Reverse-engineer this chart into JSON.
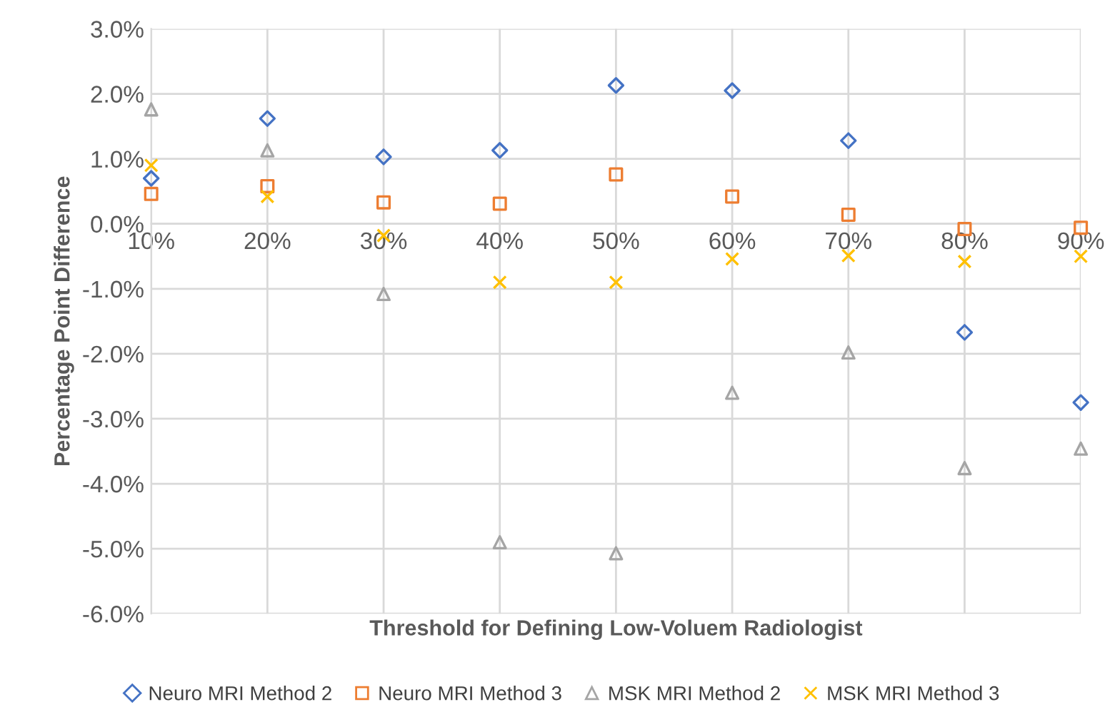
{
  "chart_data": {
    "type": "scatter",
    "xlabel": "Threshold for Defining Low-Voluem Radiologist",
    "ylabel": "Percentage Point Difference",
    "categories": [
      "10%",
      "20%",
      "30%",
      "40%",
      "50%",
      "60%",
      "70%",
      "80%",
      "90%"
    ],
    "ylim": [
      -6,
      3
    ],
    "yticks": [
      {
        "value": -6,
        "label": "-6.0%"
      },
      {
        "value": -5,
        "label": "-5.0%"
      },
      {
        "value": -4,
        "label": "-4.0%"
      },
      {
        "value": -3,
        "label": "-3.0%"
      },
      {
        "value": -2,
        "label": "-2.0%"
      },
      {
        "value": -1,
        "label": "-1.0%"
      },
      {
        "value": 0,
        "label": "0.0%"
      },
      {
        "value": 1,
        "label": "1.0%"
      },
      {
        "value": 2,
        "label": "2.0%"
      },
      {
        "value": 3,
        "label": "3.0%"
      }
    ],
    "grid": true,
    "legend": "bottom",
    "series": [
      {
        "name": "Neuro MRI Method 2",
        "color": "#4472c4",
        "marker": "diamond",
        "values": [
          0.7,
          1.62,
          1.03,
          1.13,
          2.13,
          2.05,
          1.28,
          -1.67,
          -2.75
        ]
      },
      {
        "name": "Neuro MRI Method 3",
        "color": "#ed7d31",
        "marker": "square",
        "values": [
          0.46,
          0.58,
          0.33,
          0.31,
          0.76,
          0.42,
          0.14,
          -0.08,
          -0.06
        ]
      },
      {
        "name": "MSK MRI Method 2",
        "color": "#a5a5a5",
        "marker": "triangle",
        "values": [
          1.76,
          1.13,
          -1.08,
          -4.9,
          -5.07,
          -2.6,
          -1.98,
          -3.76,
          -3.46
        ]
      },
      {
        "name": "MSK MRI Method 3",
        "color": "#ffc000",
        "marker": "cross",
        "values": [
          0.9,
          0.42,
          -0.18,
          -0.9,
          -0.9,
          -0.54,
          -0.49,
          -0.58,
          -0.5
        ]
      }
    ]
  }
}
